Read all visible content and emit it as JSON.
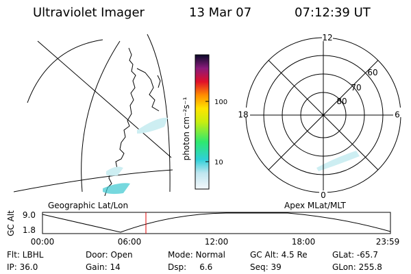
{
  "header": {
    "title": "Ultraviolet Imager",
    "date": "13 Mar 07",
    "time": "07:12:39 UT"
  },
  "colorbar": {
    "label": "photon cm⁻²s⁻¹",
    "ticks": [
      "100",
      "10"
    ]
  },
  "polar": {
    "mlt_labels": [
      "12",
      "18",
      "6",
      "0"
    ],
    "lat_labels": [
      "60",
      "70",
      "80"
    ]
  },
  "panels": {
    "left": "Geographic Lat/Lon",
    "right": "Apex MLat/MLT"
  },
  "altitude": {
    "axis_label": "GC Alt",
    "y_labels": [
      "9.0",
      "1.8"
    ],
    "x_labels": [
      "00:00",
      "06:00",
      "12:00",
      "18:00",
      "23:59"
    ]
  },
  "footer": [
    [
      "Flt: LBHL",
      "Door: Open",
      "Mode: Normal",
      "GC Alt: 4.5 Re",
      "GLat: -65.7"
    ],
    [
      "IP: 36.0",
      "Gain: 14",
      "Dsp:     6.6",
      "Seq: 39",
      "GLon: 255.8"
    ]
  ]
}
